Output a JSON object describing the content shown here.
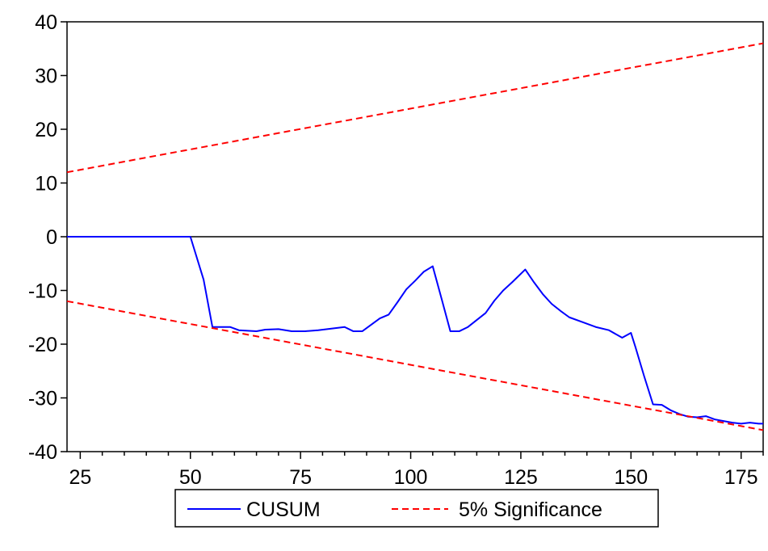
{
  "chart_data": {
    "type": "line",
    "title": "",
    "xlabel": "",
    "ylabel": "",
    "xlim": [
      22,
      180
    ],
    "ylim": [
      -40,
      40
    ],
    "x_ticks": [
      25,
      50,
      75,
      100,
      125,
      150,
      175
    ],
    "y_ticks": [
      40,
      30,
      20,
      10,
      0,
      -10,
      -20,
      -30,
      -40
    ],
    "grid": false,
    "zero_line": true,
    "legend_position": "bottom-center",
    "series": [
      {
        "name": "CUSUM",
        "color": "#0000ff",
        "style": "solid",
        "points": [
          [
            22,
            0
          ],
          [
            30,
            0
          ],
          [
            40,
            0
          ],
          [
            50,
            0
          ],
          [
            53,
            -8
          ],
          [
            55,
            -16.8
          ],
          [
            57,
            -16.8
          ],
          [
            59,
            -16.8
          ],
          [
            61,
            -17.4
          ],
          [
            63,
            -17.5
          ],
          [
            65,
            -17.6
          ],
          [
            67,
            -17.3
          ],
          [
            70,
            -17.2
          ],
          [
            73,
            -17.6
          ],
          [
            76,
            -17.6
          ],
          [
            79,
            -17.4
          ],
          [
            82,
            -17.1
          ],
          [
            85,
            -16.8
          ],
          [
            87,
            -17.6
          ],
          [
            89,
            -17.6
          ],
          [
            91,
            -16.4
          ],
          [
            93,
            -15.2
          ],
          [
            95,
            -14.5
          ],
          [
            97,
            -12.2
          ],
          [
            99,
            -9.8
          ],
          [
            101,
            -8.2
          ],
          [
            103,
            -6.5
          ],
          [
            105,
            -5.5
          ],
          [
            107,
            -11.5
          ],
          [
            109,
            -17.6
          ],
          [
            111,
            -17.6
          ],
          [
            113,
            -16.8
          ],
          [
            115,
            -15.5
          ],
          [
            117,
            -14.2
          ],
          [
            119,
            -11.9
          ],
          [
            121,
            -10
          ],
          [
            123,
            -8.5
          ],
          [
            126,
            -6.1
          ],
          [
            128,
            -8.5
          ],
          [
            130,
            -10.7
          ],
          [
            132,
            -12.5
          ],
          [
            134,
            -13.8
          ],
          [
            136,
            -15
          ],
          [
            139,
            -15.9
          ],
          [
            142,
            -16.8
          ],
          [
            145,
            -17.4
          ],
          [
            148,
            -18.8
          ],
          [
            150,
            -17.9
          ],
          [
            151,
            -20.5
          ],
          [
            153,
            -26
          ],
          [
            155,
            -31.2
          ],
          [
            157,
            -31.3
          ],
          [
            159,
            -32.3
          ],
          [
            161,
            -33
          ],
          [
            163,
            -33.5
          ],
          [
            165,
            -33.6
          ],
          [
            167,
            -33.4
          ],
          [
            169,
            -34
          ],
          [
            171,
            -34.3
          ],
          [
            173,
            -34.6
          ],
          [
            175,
            -34.8
          ],
          [
            177,
            -34.6
          ],
          [
            179,
            -34.8
          ],
          [
            180,
            -34.8
          ]
        ]
      },
      {
        "name": "5% Significance",
        "color": "#ff0000",
        "style": "dashed",
        "points": [
          [
            22,
            12
          ],
          [
            180,
            36
          ]
        ]
      },
      {
        "name": "5% Significance",
        "color": "#ff0000",
        "style": "dashed",
        "points": [
          [
            22,
            -12
          ],
          [
            180,
            -36
          ]
        ]
      }
    ]
  },
  "legend": {
    "items": [
      {
        "label": "CUSUM",
        "color": "#0000ff",
        "style": "solid"
      },
      {
        "label": "5% Significance",
        "color": "#ff0000",
        "style": "dashed"
      }
    ]
  }
}
